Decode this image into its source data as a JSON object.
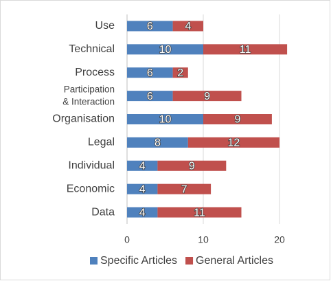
{
  "chart_data": {
    "type": "bar",
    "orientation": "horizontal",
    "stacked": true,
    "categories": [
      "Use",
      "Technical",
      "Process",
      "Participation\n& Interaction",
      "Organisation",
      "Legal",
      "Individual",
      "Economic",
      "Data"
    ],
    "series": [
      {
        "name": "Specific Articles",
        "color": "#4f81bd",
        "values": [
          6,
          10,
          6,
          6,
          10,
          8,
          4,
          4,
          4
        ]
      },
      {
        "name": "General Articles",
        "color": "#c0504d",
        "values": [
          4,
          11,
          2,
          9,
          9,
          12,
          9,
          7,
          11
        ]
      }
    ],
    "xlim": [
      0,
      25
    ],
    "xticks": [
      0,
      10,
      20
    ],
    "grid": true,
    "legend": "bottom"
  }
}
